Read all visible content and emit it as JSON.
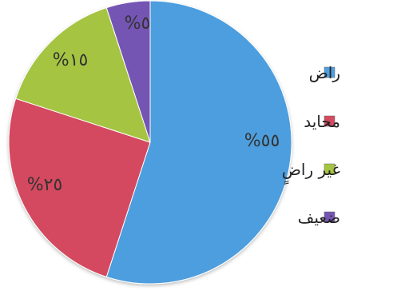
{
  "chart_data": {
    "type": "pie",
    "legend_position": "right",
    "slices": [
      {
        "label": "راض",
        "value": 55,
        "value_label": "%٥٥",
        "color": "#4d9ede"
      },
      {
        "label": "محايد",
        "value": 25,
        "value_label": "%٢٥",
        "color": "#d44a5f"
      },
      {
        "label": "غير راضٍ",
        "value": 15,
        "value_label": "%١٥",
        "color": "#a5c442"
      },
      {
        "label": "ضعيف",
        "value": 5,
        "value_label": "%٥",
        "color": "#7555b3"
      }
    ]
  }
}
